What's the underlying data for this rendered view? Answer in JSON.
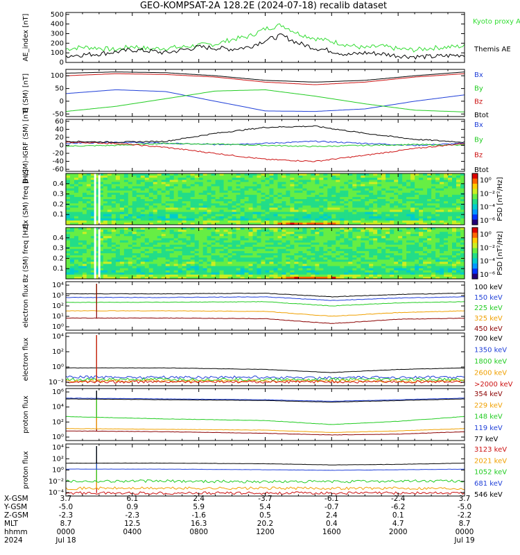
{
  "title": "GEO-KOMPSAT-2A 128.2E (2024-07-18) recalib dataset",
  "colors": {
    "black": "#000000",
    "blue": "#1f3fd8",
    "green": "#22cc22",
    "lightgreen": "#33dd33",
    "red": "#cc1111",
    "orange": "#f0a000",
    "darkred": "#8b0000"
  },
  "chart_data": [
    {
      "type": "line",
      "id": "ae",
      "ylabel": "AE_index [nT]",
      "yticks": [
        "500",
        "400",
        "300",
        "200",
        "100",
        "0"
      ],
      "ylim": [
        0,
        520
      ],
      "series": [
        {
          "name": "Kyoto proxy AE",
          "color": "#33dd33",
          "x": [
            0,
            1,
            2,
            3,
            4,
            5,
            6,
            7,
            8,
            9,
            10,
            11,
            12,
            13,
            14,
            15,
            16,
            17,
            18,
            19,
            20,
            21,
            22,
            23,
            24
          ],
          "values": [
            140,
            160,
            150,
            130,
            170,
            140,
            150,
            160,
            180,
            190,
            240,
            270,
            350,
            390,
            300,
            250,
            220,
            180,
            150,
            170,
            140,
            130,
            150,
            160,
            170
          ]
        },
        {
          "name": "Themis AE",
          "color": "#000000",
          "x": [
            0,
            1,
            2,
            3,
            4,
            5,
            6,
            7,
            8,
            9,
            10,
            11,
            12,
            13,
            14,
            15,
            16,
            17,
            18,
            19,
            20,
            21,
            22,
            23,
            24
          ],
          "values": [
            70,
            80,
            90,
            110,
            130,
            120,
            100,
            130,
            160,
            150,
            140,
            160,
            230,
            280,
            200,
            150,
            120,
            80,
            100,
            90,
            70,
            60,
            60,
            70,
            80
          ]
        }
      ]
    },
    {
      "type": "line",
      "id": "bsm",
      "ylabel": "B (SM) [nT]",
      "yticks": [
        "100",
        "50",
        "0",
        "-50"
      ],
      "ylim": [
        -60,
        125
      ],
      "series": [
        {
          "name": "Bx",
          "color": "#1f3fd8",
          "x": [
            0,
            3,
            6,
            9,
            12,
            15,
            18,
            21,
            24
          ],
          "values": [
            30,
            45,
            38,
            0,
            -38,
            -40,
            -30,
            0,
            25
          ]
        },
        {
          "name": "By",
          "color": "#22cc22",
          "x": [
            0,
            3,
            6,
            9,
            12,
            15,
            18,
            21,
            24
          ],
          "values": [
            -40,
            -20,
            10,
            40,
            45,
            20,
            -10,
            -35,
            -42
          ]
        },
        {
          "name": "Bz",
          "color": "#cc1111",
          "x": [
            0,
            3,
            6,
            9,
            12,
            15,
            18,
            21,
            24
          ],
          "values": [
            100,
            108,
            105,
            95,
            75,
            65,
            75,
            95,
            108
          ]
        },
        {
          "name": "Btot",
          "color": "#000000",
          "x": [
            0,
            3,
            6,
            9,
            12,
            15,
            18,
            21,
            24
          ],
          "values": [
            110,
            115,
            112,
            100,
            82,
            75,
            82,
            100,
            115
          ]
        }
      ]
    },
    {
      "type": "line",
      "id": "bigrf",
      "ylabel": "B (SM)-IGRF (SM) [nT]",
      "yticks": [
        "60",
        "40",
        "20",
        "0",
        "-20",
        "-40",
        "-60"
      ],
      "ylim": [
        -65,
        65
      ],
      "series": [
        {
          "name": "Bx",
          "color": "#1f3fd8",
          "x": [
            0,
            3,
            6,
            9,
            12,
            15,
            18,
            21,
            24
          ],
          "values": [
            5,
            8,
            5,
            2,
            5,
            10,
            5,
            0,
            5
          ]
        },
        {
          "name": "By",
          "color": "#22cc22",
          "x": [
            0,
            3,
            6,
            9,
            12,
            15,
            18,
            21,
            24
          ],
          "values": [
            -2,
            0,
            5,
            3,
            0,
            -3,
            0,
            2,
            0
          ]
        },
        {
          "name": "Bz",
          "color": "#cc1111",
          "x": [
            0,
            3,
            6,
            9,
            12,
            15,
            18,
            21,
            24
          ],
          "values": [
            8,
            5,
            -5,
            -20,
            -35,
            -40,
            -25,
            -8,
            5
          ]
        },
        {
          "name": "Btot",
          "color": "#000000",
          "x": [
            0,
            3,
            6,
            9,
            12,
            15,
            18,
            21,
            24
          ],
          "values": [
            10,
            8,
            10,
            30,
            45,
            48,
            30,
            15,
            8
          ]
        }
      ]
    },
    {
      "type": "heatmap",
      "id": "bxspec",
      "ylabel": "Bx (SM) freq [Hz]",
      "yticks": [
        "0.4",
        "0.3",
        "0.2",
        "0.1"
      ],
      "ylim": [
        0,
        0.5
      ],
      "colorbar_label": "PSD [nT²/Hz]",
      "colorbar_ticks": [
        "10⁰",
        "10⁻²",
        "10⁻⁴",
        "10⁻⁶"
      ]
    },
    {
      "type": "heatmap",
      "id": "bzspec",
      "ylabel": "Bz (SM) freq [Hz]",
      "yticks": [
        "0.4",
        "0.3",
        "0.2",
        "0.1"
      ],
      "ylim": [
        0,
        0.5
      ],
      "colorbar_label": "PSD [nT²/Hz]",
      "colorbar_ticks": [
        "10⁰",
        "10⁻²",
        "10⁻⁴",
        "10⁻⁶"
      ]
    },
    {
      "type": "line",
      "id": "elow",
      "ylabel": "electron flux",
      "yticks": [
        "10⁴",
        "10³",
        "10²",
        "10¹",
        "10⁰"
      ],
      "log_range": [
        0,
        4
      ],
      "series": [
        {
          "name": "100 keV",
          "color": "#000000",
          "x": [
            0,
            6,
            12,
            16,
            20,
            24
          ],
          "values": [
            3.0,
            3.0,
            3.05,
            2.75,
            2.95,
            3.05
          ]
        },
        {
          "name": "150 keV",
          "color": "#1f3fd8",
          "x": [
            0,
            6,
            12,
            16,
            20,
            24
          ],
          "values": [
            2.7,
            2.7,
            2.75,
            2.45,
            2.65,
            2.75
          ]
        },
        {
          "name": "225 keV",
          "color": "#22cc22",
          "x": [
            0,
            6,
            12,
            16,
            20,
            24
          ],
          "values": [
            2.3,
            2.3,
            2.35,
            2.0,
            2.25,
            2.35
          ]
        },
        {
          "name": "325 keV",
          "color": "#f0a000",
          "x": [
            0,
            6,
            12,
            16,
            20,
            24
          ],
          "values": [
            1.6,
            1.6,
            1.55,
            1.15,
            1.45,
            1.6
          ]
        },
        {
          "name": "450 keV",
          "color": "#8b0000",
          "x": [
            0,
            6,
            12,
            16,
            20,
            24
          ],
          "values": [
            1.0,
            1.0,
            0.95,
            0.55,
            0.9,
            1.0
          ]
        }
      ]
    },
    {
      "type": "line",
      "id": "ehigh",
      "ylabel": "electron flux",
      "yticks": [
        "10⁴",
        "10²",
        "10⁰",
        "10⁻²"
      ],
      "log_range": [
        -2.3,
        4.5
      ],
      "series": [
        {
          "name": "700 keV",
          "color": "#000000",
          "x": [
            0,
            6,
            12,
            16,
            20,
            24
          ],
          "values": [
            0.0,
            0.0,
            -0.2,
            -0.6,
            -0.2,
            0.0
          ]
        },
        {
          "name": "1350 keV",
          "color": "#1f3fd8",
          "x": [
            0,
            6,
            12,
            16,
            20,
            24
          ],
          "values": [
            -1.2,
            -1.2,
            -1.2,
            -1.3,
            -1.2,
            -1.2
          ]
        },
        {
          "name": "1800 keV",
          "color": "#22cc22",
          "x": [
            0,
            6,
            12,
            16,
            20,
            24
          ],
          "values": [
            -1.5,
            -1.5,
            -1.5,
            -1.5,
            -1.5,
            -1.5
          ]
        },
        {
          "name": "2600 keV",
          "color": "#f0a000",
          "x": [
            0,
            6,
            12,
            16,
            20,
            24
          ],
          "values": [
            -1.7,
            -1.7,
            -1.7,
            -1.7,
            -1.7,
            -1.7
          ]
        },
        {
          "name": ">2000 keV",
          "color": "#cc1111",
          "x": [
            0,
            6,
            12,
            16,
            20,
            24
          ],
          "values": [
            -1.8,
            -1.8,
            -1.8,
            -1.8,
            -1.8,
            -1.8
          ]
        }
      ]
    },
    {
      "type": "line",
      "id": "plow",
      "ylabel": "proton flux",
      "yticks": [
        "10⁶",
        "10⁴",
        "10²",
        "10⁰"
      ],
      "log_range": [
        -0.5,
        6
      ],
      "series": [
        {
          "name": "354 keV",
          "color": "#8b0000",
          "x": [
            0,
            6,
            12,
            16,
            20,
            24
          ],
          "values": [
            0.7,
            0.6,
            0.4,
            0.2,
            0.3,
            0.6
          ]
        },
        {
          "name": "229 keV",
          "color": "#f0a000",
          "x": [
            0,
            6,
            12,
            16,
            20,
            24
          ],
          "values": [
            1.0,
            0.9,
            0.8,
            0.5,
            0.7,
            1.0
          ]
        },
        {
          "name": "148 keV",
          "color": "#22cc22",
          "x": [
            0,
            6,
            12,
            16,
            20,
            24
          ],
          "values": [
            2.5,
            2.2,
            2.0,
            1.5,
            1.9,
            2.5
          ]
        },
        {
          "name": "119 keV",
          "color": "#1f3fd8",
          "x": [
            0,
            6,
            12,
            16,
            20,
            24
          ],
          "values": [
            4.8,
            4.7,
            4.6,
            4.4,
            4.6,
            4.8
          ]
        },
        {
          "name": "77 keV",
          "color": "#000000",
          "x": [
            0,
            6,
            12,
            16,
            20,
            24
          ],
          "values": [
            4.7,
            4.6,
            4.5,
            4.3,
            4.5,
            4.7
          ]
        }
      ]
    },
    {
      "type": "line",
      "id": "phigh",
      "ylabel": "proton flux",
      "yticks": [
        "10⁴",
        "10²",
        "10⁰",
        "10⁻²",
        "10⁻⁴"
      ],
      "log_range": [
        -4.5,
        4.2
      ],
      "series": [
        {
          "name": "3123 keV",
          "color": "#cc1111",
          "x": [
            0,
            6,
            12,
            16,
            20,
            24
          ],
          "values": [
            -4.0,
            -4.0,
            -4.0,
            -4.0,
            -4.0,
            -4.0
          ]
        },
        {
          "name": "2021 keV",
          "color": "#f0a000",
          "x": [
            0,
            6,
            12,
            16,
            20,
            24
          ],
          "values": [
            -3.2,
            -3.2,
            -3.2,
            -3.2,
            -3.2,
            -3.2
          ]
        },
        {
          "name": "1052 keV",
          "color": "#22cc22",
          "x": [
            0,
            6,
            12,
            16,
            20,
            24
          ],
          "values": [
            -2.0,
            -2.0,
            -2.1,
            -2.1,
            -2.0,
            -2.0
          ]
        },
        {
          "name": "681 keV",
          "color": "#1f3fd8",
          "x": [
            0,
            6,
            12,
            16,
            20,
            24
          ],
          "values": [
            0.0,
            0.0,
            -0.1,
            -0.2,
            -0.1,
            0.0
          ]
        },
        {
          "name": "546 keV",
          "color": "#000000",
          "x": [
            0,
            6,
            12,
            16,
            20,
            24
          ],
          "values": [
            1.0,
            1.0,
            0.9,
            0.7,
            0.8,
            1.0
          ]
        }
      ]
    }
  ],
  "ephemeris": {
    "labels": [
      "X-GSM",
      "Y-GSM",
      "Z-GSM",
      "MLT",
      "hhmm",
      "2024"
    ],
    "columns": [
      [
        "3.7",
        "-5.0",
        "-2.3",
        "8.7",
        "0000",
        "Jul 18"
      ],
      [
        "6.1",
        "0.9",
        "-2.3",
        "12.5",
        "0400",
        ""
      ],
      [
        "2.4",
        "5.9",
        "-1.6",
        "16.3",
        "0800",
        ""
      ],
      [
        "-3.7",
        "5.4",
        "0.5",
        "20.2",
        "1200",
        ""
      ],
      [
        "-6.1",
        "-0.7",
        "2.4",
        "0.4",
        "1600",
        ""
      ],
      [
        "-2.4",
        "-6.2",
        "0.1",
        "4.7",
        "2000",
        ""
      ],
      [
        "3.7",
        "-5.0",
        "-2.2",
        "8.7",
        "0000",
        "Jul 19"
      ]
    ]
  }
}
